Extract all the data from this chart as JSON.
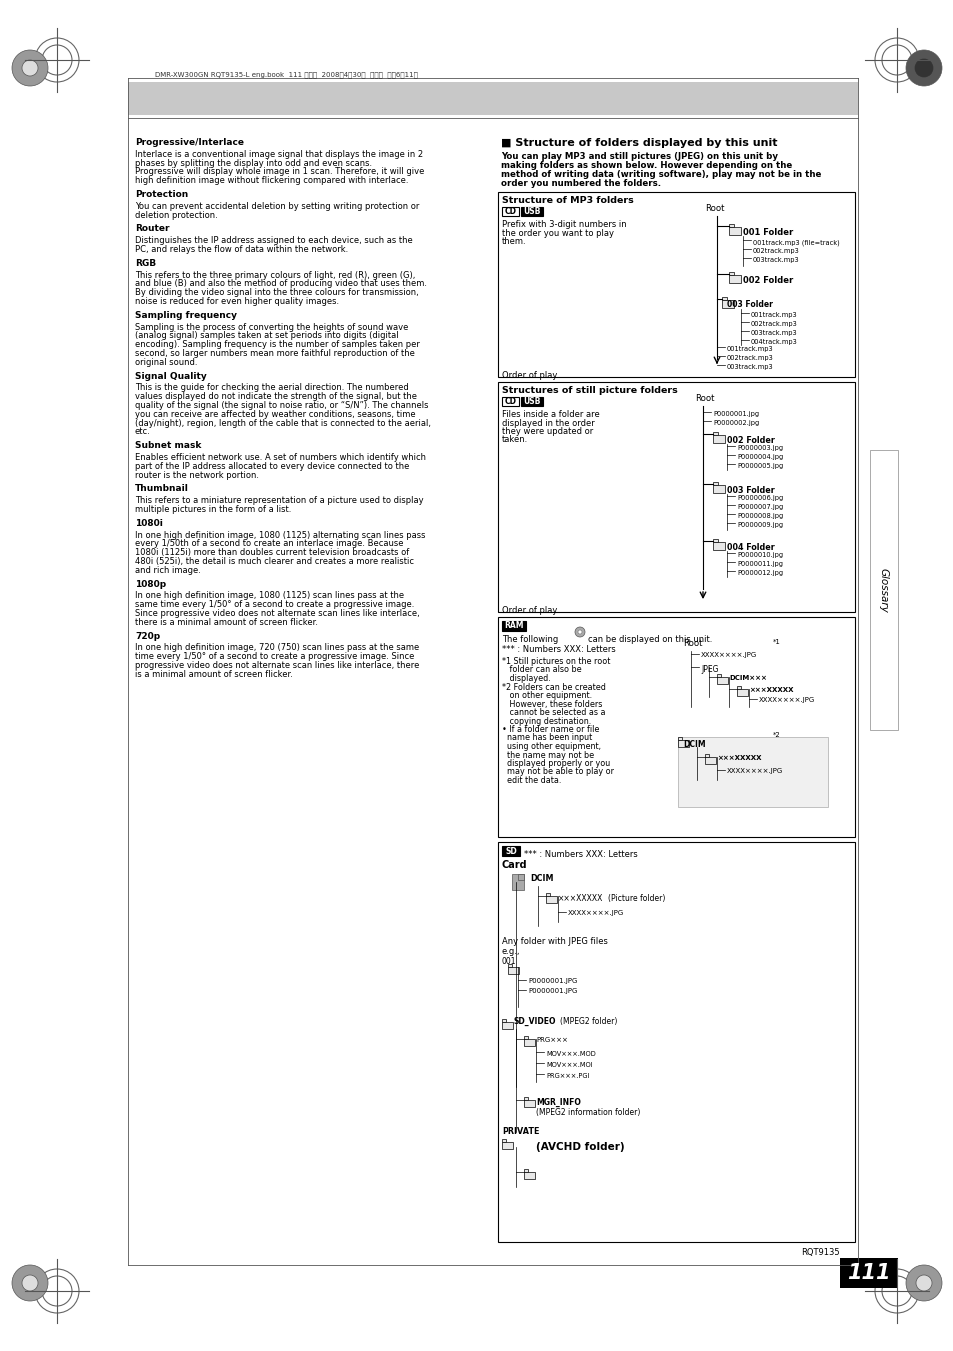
{
  "page_bg": "#ffffff",
  "header_bg": "#c8c8c8",
  "header_text": "DMR-XW300GN RQT9135-L eng.book  111 ページ  2008年4月30日  水曜日  午後6時11分",
  "right_tab_text": "Glossary",
  "footer_text": "RQT9135",
  "page_number": "111",
  "page_number_bg": "#000000",
  "page_number_color": "#ffffff",
  "left_entries": [
    {
      "bold": "Progressive/Interlace",
      "text": "Interlace is a conventional image signal that displays the image in 2\nphases by splitting the display into odd and even scans.\nProgressive will display whole image in 1 scan. Therefore, it will give\nhigh definition image without flickering compared with interlace."
    },
    {
      "bold": "Protection",
      "text": "You can prevent accidental deletion by setting writing protection or\ndeletion protection."
    },
    {
      "bold": "Router",
      "text": "Distinguishes the IP address assigned to each device, such as the\nPC, and relays the flow of data within the network."
    },
    {
      "bold": "RGB",
      "text": "This refers to the three primary colours of light, red (R), green (G),\nand blue (B) and also the method of producing video that uses them.\nBy dividing the video signal into the three colours for transmission,\nnoise is reduced for even higher quality images."
    },
    {
      "bold": "Sampling frequency",
      "text": "Sampling is the process of converting the heights of sound wave\n(analog signal) samples taken at set periods into digits (digital\nencoding). Sampling frequency is the number of samples taken per\nsecond, so larger numbers mean more faithful reproduction of the\noriginal sound."
    },
    {
      "bold": "Signal Quality",
      "text": "This is the guide for checking the aerial direction. The numbered\nvalues displayed do not indicate the strength of the signal, but the\nquality of the signal (the signal to noise ratio, or “S/N”). The channels\nyou can receive are affected by weather conditions, seasons, time\n(day/night), region, length of the cable that is connected to the aerial,\netc."
    },
    {
      "bold": "Subnet mask",
      "text": "Enables efficient network use. A set of numbers which identify which\npart of the IP address allocated to every device connected to the\nrouter is the network portion."
    },
    {
      "bold": "Thumbnail",
      "text": "This refers to a miniature representation of a picture used to display\nmultiple pictures in the form of a list."
    },
    {
      "bold": "1080i",
      "text": "In one high definition image, 1080 (1125) alternating scan lines pass\nevery 1/50th of a second to create an interlace image. Because\n1080i (1125i) more than doubles current television broadcasts of\n480i (525i), the detail is much clearer and creates a more realistic\nand rich image."
    },
    {
      "bold": "1080p",
      "text": "In one high definition image, 1080 (1125) scan lines pass at the\nsame time every 1/50° of a second to create a progressive image.\nSince progressive video does not alternate scan lines like interlace,\nthere is a minimal amount of screen flicker."
    },
    {
      "bold": "720p",
      "text": "In one high definition image, 720 (750) scan lines pass at the same\ntime every 1/50° of a second to create a progressive image. Since\nprogressive video does not alternate scan lines like interlace, there\nis a minimal amount of screen flicker."
    }
  ],
  "right_column_title": "■ Structure of folders displayed by this unit",
  "right_intro": "You can play MP3 and still pictures (JPEG) on this unit by\nmaking folders as shown below. However depending on the\nmethod of writing data (writing software), play may not be in the\norder you numbered the folders."
}
